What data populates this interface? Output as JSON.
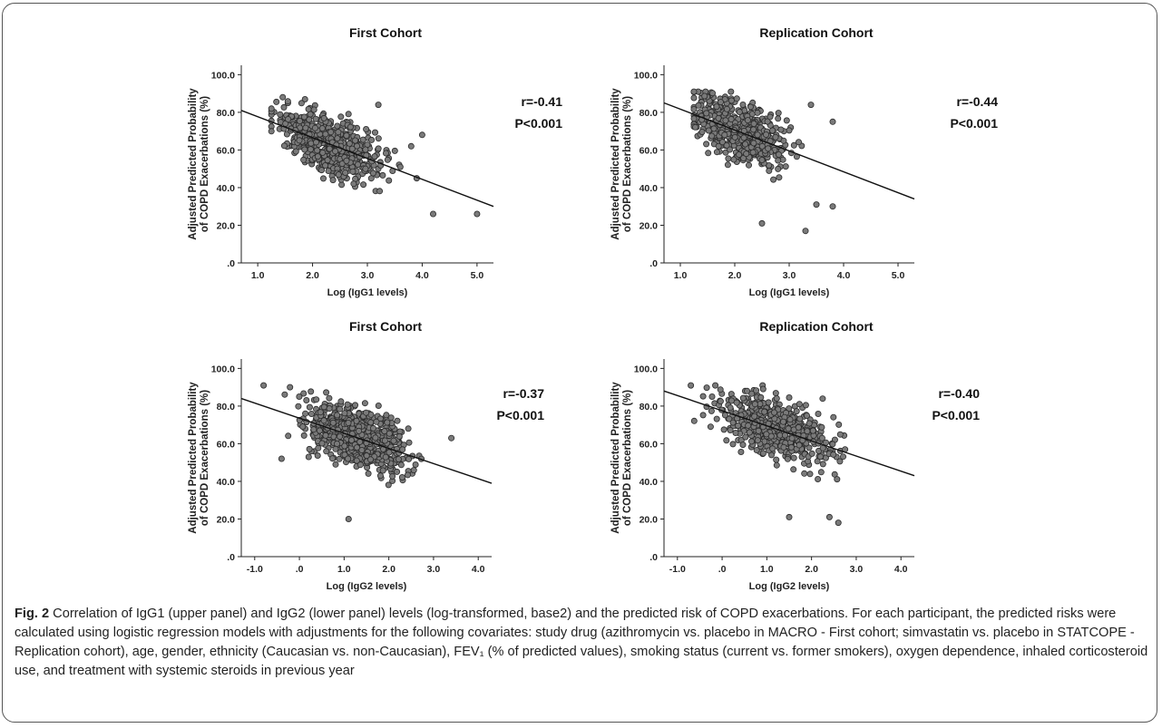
{
  "figure": {
    "caption_label": "Fig. 2",
    "caption_text": "Correlation of IgG1 (upper panel) and IgG2 (lower panel) levels (log-transformed, base2) and the predicted risk of COPD exacerbations. For each participant, the predicted risks were calculated using logistic regression models with adjustments for the following covariates: study drug (azithromycin vs. placebo in MACRO - First cohort; simvastatin vs. placebo in STATCOPE - Replication cohort), age, gender, ethnicity (Caucasian vs. non-Caucasian), FEV₁ (% of predicted values), smoking status (current vs. former smokers), oxygen dependence, inhaled corticosteroid use, and treatment with systemic steroids in previous year"
  },
  "style": {
    "marker_fill": "#7a7a7a",
    "marker_stroke": "#2b2b2b",
    "line_color": "#111111",
    "frame": "#555555"
  },
  "chart_data": [
    {
      "type": "scatter",
      "title": "First Cohort",
      "xlabel": "Log (IgG1 levels)",
      "ylabel": [
        "Adjusted Predicted Probability",
        "of COPD Exacerbations (%)"
      ],
      "xlim": [
        0.7,
        5.3
      ],
      "ylim": [
        0,
        105
      ],
      "xticks": [
        "1.0",
        "2.0",
        "3.0",
        "4.0",
        "5.0"
      ],
      "yticks": [
        ".0",
        "20.0",
        "40.0",
        "60.0",
        "80.0",
        "100.0"
      ],
      "annotation": [
        "r=-0.41",
        "P<0.001"
      ],
      "fit_line": {
        "x": [
          0.7,
          5.3
        ],
        "y": [
          81,
          30
        ]
      },
      "cluster": {
        "x_range": [
          1.25,
          4.1
        ],
        "x_center": 2.3,
        "y_max": 89,
        "y_min": 18,
        "n": 620
      },
      "outliers": [
        [
          5.0,
          26
        ],
        [
          4.2,
          26
        ],
        [
          3.9,
          45
        ],
        [
          4.0,
          68
        ],
        [
          3.6,
          51
        ],
        [
          3.2,
          84
        ],
        [
          3.8,
          62
        ]
      ]
    },
    {
      "type": "scatter",
      "title": "Replication Cohort",
      "xlabel": "Log (IgG1 levels)",
      "ylabel": [
        "Adjusted Predicted Probability",
        "of COPD Exacerbations (%)"
      ],
      "xlim": [
        0.7,
        5.3
      ],
      "ylim": [
        0,
        105
      ],
      "xticks": [
        "1.0",
        "2.0",
        "3.0",
        "4.0",
        "5.0"
      ],
      "yticks": [
        ".0",
        "20.0",
        "40.0",
        "60.0",
        "80.0",
        "100.0"
      ],
      "annotation": [
        "r=-0.44",
        "P<0.001"
      ],
      "fit_line": {
        "x": [
          0.7,
          5.3
        ],
        "y": [
          85,
          34
        ]
      },
      "cluster": {
        "x_range": [
          1.25,
          3.9
        ],
        "x_center": 2.1,
        "y_max": 91,
        "y_min": 17,
        "n": 540
      },
      "outliers": [
        [
          3.3,
          17
        ],
        [
          3.8,
          30
        ],
        [
          3.5,
          31
        ],
        [
          3.4,
          84
        ],
        [
          3.8,
          75
        ],
        [
          2.5,
          21
        ]
      ]
    },
    {
      "type": "scatter",
      "title": "First Cohort",
      "xlabel": "Log (IgG2 levels)",
      "ylabel": [
        "Adjusted Predicted Probability",
        "of COPD Exacerbations (%)"
      ],
      "xlim": [
        -1.3,
        4.3
      ],
      "ylim": [
        0,
        105
      ],
      "xticks": [
        "-1.0",
        ".0",
        "1.0",
        "2.0",
        "3.0",
        "4.0"
      ],
      "yticks": [
        ".0",
        "20.0",
        "40.0",
        "60.0",
        "80.0",
        "100.0"
      ],
      "annotation": [
        "r=-0.37",
        "P<0.001"
      ],
      "fit_line": {
        "x": [
          -1.3,
          4.3
        ],
        "y": [
          84,
          39
        ]
      },
      "cluster": {
        "x_range": [
          -0.5,
          3.0
        ],
        "x_center": 1.3,
        "y_max": 90,
        "y_min": 20,
        "n": 680
      },
      "outliers": [
        [
          -0.8,
          91
        ],
        [
          3.4,
          63
        ],
        [
          1.1,
          20
        ],
        [
          -0.4,
          52
        ]
      ]
    },
    {
      "type": "scatter",
      "title": "Replication Cohort",
      "xlabel": "Log (IgG2 levels)",
      "ylabel": [
        "Adjusted Predicted Probability",
        "of COPD Exacerbations (%)"
      ],
      "xlim": [
        -1.3,
        4.3
      ],
      "ylim": [
        0,
        105
      ],
      "xticks": [
        "-1.0",
        ".0",
        "1.0",
        "2.0",
        "3.0",
        "4.0"
      ],
      "yticks": [
        ".0",
        "20.0",
        "40.0",
        "60.0",
        "80.0",
        "100.0"
      ],
      "annotation": [
        "r=-0.40",
        "P<0.001"
      ],
      "fit_line": {
        "x": [
          -1.3,
          4.3
        ],
        "y": [
          88,
          43
        ]
      },
      "cluster": {
        "x_range": [
          -0.9,
          2.8
        ],
        "x_center": 1.2,
        "y_max": 91,
        "y_min": 18,
        "n": 560
      },
      "outliers": [
        [
          -0.7,
          91
        ],
        [
          2.6,
          18
        ],
        [
          2.4,
          21
        ],
        [
          1.5,
          21
        ]
      ]
    }
  ]
}
